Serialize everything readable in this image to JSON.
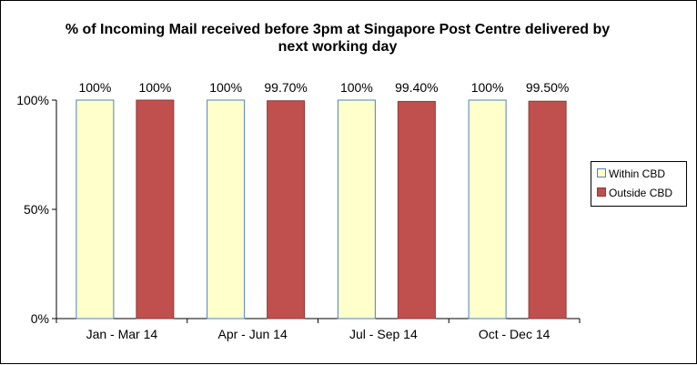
{
  "chart_data": {
    "type": "bar",
    "title": "% of Incoming Mail received before 3pm at Singapore Post Centre delivered by next working day",
    "categories": [
      "Jan - Mar 14",
      "Apr - Jun 14",
      "Jul - Sep 14",
      "Oct - Dec 14"
    ],
    "series": [
      {
        "name": "Within CBD",
        "values": [
          100,
          100,
          100,
          100
        ],
        "labels": [
          "100%",
          "100%",
          "100%",
          "100%"
        ],
        "color": "#FFFFCC",
        "border": "#4F81BD"
      },
      {
        "name": "Outside CBD",
        "values": [
          100,
          99.7,
          99.4,
          99.5
        ],
        "labels": [
          "100%",
          "99.70%",
          "99.40%",
          "99.50%"
        ],
        "color": "#C0504D",
        "border": "#8B3A38"
      }
    ],
    "ylim": [
      0,
      100
    ],
    "yticks": [
      {
        "value": 0,
        "label": "0%"
      },
      {
        "value": 50,
        "label": "50%"
      },
      {
        "value": 100,
        "label": "100%"
      }
    ],
    "xlabel": "",
    "ylabel": "",
    "grid": false,
    "legend": "right"
  }
}
